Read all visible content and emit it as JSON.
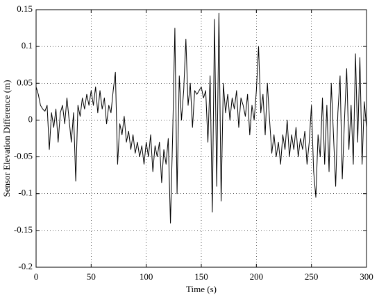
{
  "chart_data": {
    "type": "line",
    "xlabel": "Time (s)",
    "ylabel": "Sensor Elevation Difference (m)",
    "xlim": [
      0,
      300
    ],
    "xticks": [
      0,
      50,
      100,
      150,
      200,
      250,
      300
    ],
    "ylim": [
      -0.2,
      0.15
    ],
    "yticks": [
      -0.2,
      -0.15,
      -0.1,
      -0.05,
      0,
      0.05,
      0.1,
      0.15
    ],
    "grid": true,
    "x": [
      0,
      2,
      4,
      6,
      8,
      10,
      12,
      14,
      16,
      18,
      20,
      22,
      24,
      26,
      28,
      30,
      32,
      34,
      36,
      38,
      40,
      42,
      44,
      46,
      48,
      50,
      52,
      54,
      56,
      58,
      60,
      62,
      64,
      66,
      68,
      70,
      72,
      74,
      76,
      78,
      80,
      82,
      84,
      86,
      88,
      90,
      92,
      94,
      96,
      98,
      100,
      102,
      104,
      106,
      108,
      110,
      112,
      114,
      116,
      118,
      120,
      122,
      124,
      126,
      128,
      130,
      132,
      134,
      136,
      138,
      140,
      142,
      144,
      146,
      148,
      150,
      152,
      154,
      156,
      158,
      160,
      162,
      164,
      166,
      168,
      170,
      172,
      174,
      176,
      178,
      180,
      182,
      184,
      186,
      188,
      190,
      192,
      194,
      196,
      198,
      200,
      202,
      204,
      206,
      208,
      210,
      212,
      214,
      216,
      218,
      220,
      222,
      224,
      226,
      228,
      230,
      232,
      234,
      236,
      238,
      240,
      242,
      244,
      246,
      248,
      250,
      252,
      254,
      256,
      258,
      260,
      262,
      264,
      266,
      268,
      270,
      272,
      274,
      276,
      278,
      280,
      282,
      284,
      286,
      288,
      290,
      292,
      294,
      296,
      298,
      300
    ],
    "series": [
      {
        "color": "#000000",
        "values": [
          0.045,
          0.035,
          0.02,
          0.015,
          0.012,
          0.02,
          -0.04,
          0.01,
          -0.01,
          0.015,
          -0.03,
          0.01,
          0.02,
          -0.005,
          0.03,
          0.0,
          -0.03,
          0.01,
          -0.083,
          0.02,
          0.005,
          0.03,
          0.015,
          0.035,
          0.02,
          0.04,
          0.02,
          0.045,
          0.01,
          0.04,
          0.015,
          0.03,
          -0.005,
          0.02,
          0.01,
          0.04,
          0.065,
          -0.06,
          -0.005,
          -0.02,
          0.005,
          -0.03,
          -0.015,
          -0.04,
          -0.02,
          -0.045,
          -0.03,
          -0.05,
          -0.035,
          -0.06,
          -0.03,
          -0.05,
          -0.02,
          -0.07,
          -0.035,
          -0.05,
          -0.03,
          -0.085,
          -0.04,
          -0.06,
          -0.025,
          -0.14,
          -0.02,
          0.125,
          -0.1,
          0.06,
          0.0,
          0.04,
          0.11,
          0.02,
          0.05,
          -0.01,
          0.04,
          0.035,
          0.04,
          0.045,
          0.03,
          0.04,
          -0.03,
          0.06,
          -0.125,
          0.137,
          -0.09,
          0.145,
          -0.11,
          0.05,
          0.01,
          0.035,
          0.0,
          0.03,
          0.015,
          0.04,
          -0.01,
          0.03,
          0.02,
          0.005,
          0.035,
          -0.02,
          0.02,
          0.0,
          0.04,
          0.1,
          0.01,
          0.035,
          -0.02,
          0.05,
          0.0,
          -0.045,
          -0.02,
          -0.05,
          -0.03,
          -0.06,
          -0.02,
          -0.04,
          0.0,
          -0.05,
          -0.02,
          -0.04,
          -0.01,
          -0.05,
          -0.025,
          -0.04,
          -0.015,
          -0.06,
          -0.03,
          0.02,
          -0.07,
          -0.105,
          -0.02,
          -0.05,
          0.03,
          -0.06,
          0.02,
          -0.07,
          0.05,
          -0.02,
          -0.09,
          0.01,
          0.06,
          -0.08,
          0.0,
          0.07,
          -0.04,
          0.02,
          -0.06,
          0.09,
          -0.03,
          0.085,
          -0.06,
          0.025,
          -0.01
        ]
      }
    ]
  }
}
